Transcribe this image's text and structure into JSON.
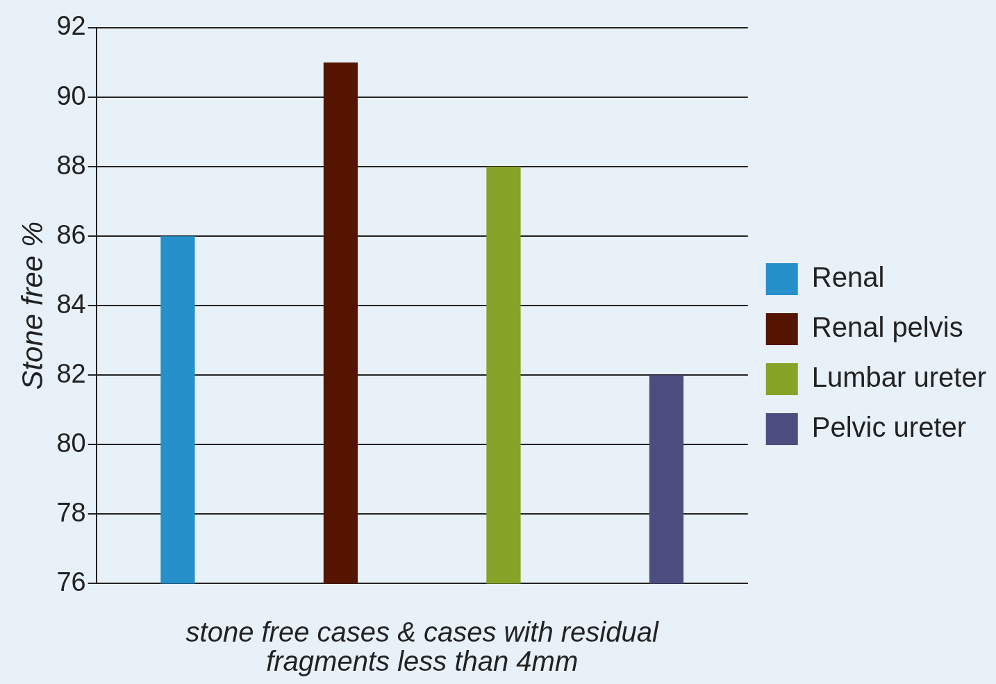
{
  "chart_data": {
    "type": "bar",
    "categories": [
      null
    ],
    "xlabel": "stone free cases & cases with residual fragments less than 4mm",
    "ylabel": "Stone free %",
    "ylim": [
      76,
      92
    ],
    "yticks": [
      76,
      78,
      80,
      82,
      84,
      86,
      88,
      90,
      92
    ],
    "grid": "y",
    "legend": "right",
    "series": [
      {
        "name": "Renal",
        "color": "#2690ca",
        "values": [
          86
        ]
      },
      {
        "name": "Renal pelvis",
        "color": "#541400",
        "values": [
          91
        ]
      },
      {
        "name": "Lumbar ureter",
        "color": "#87a328",
        "values": [
          88
        ]
      },
      {
        "name": "Pelvic ureter",
        "color": "#4d4d7f",
        "values": [
          82
        ]
      }
    ]
  }
}
